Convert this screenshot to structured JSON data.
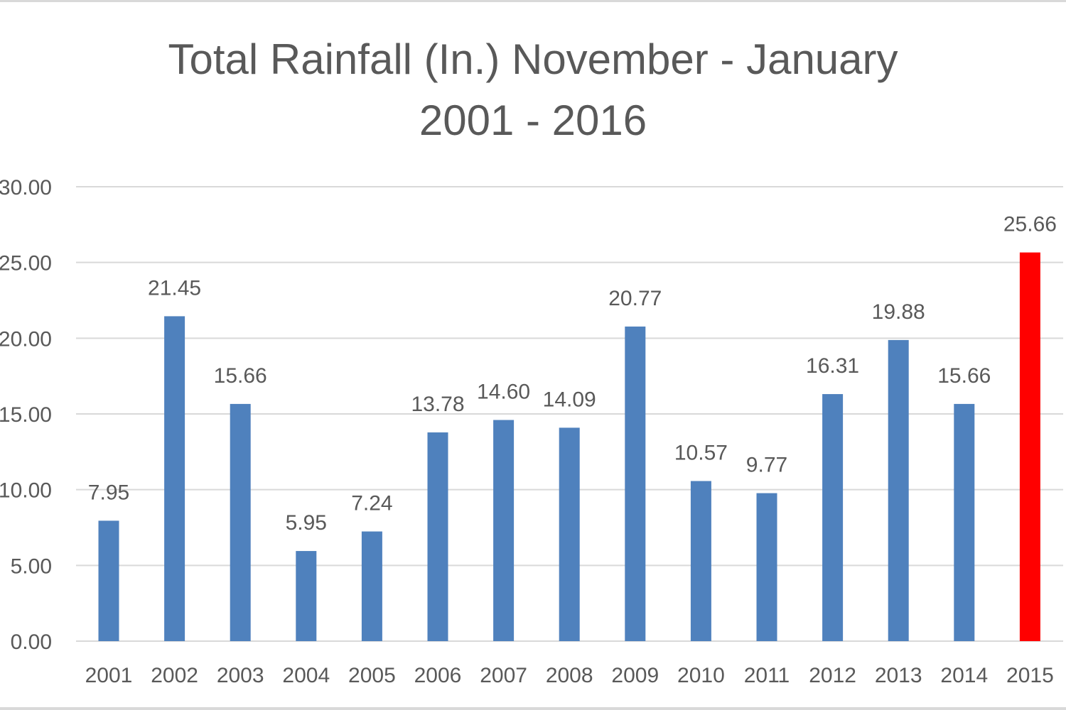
{
  "chart_data": {
    "type": "bar",
    "title_line1": "Total Rainfall (In.) November - January",
    "title_line2": "2001 - 2016",
    "categories": [
      "2001",
      "2002",
      "2003",
      "2004",
      "2005",
      "2006",
      "2007",
      "2008",
      "2009",
      "2010",
      "2011",
      "2012",
      "2013",
      "2014",
      "2015"
    ],
    "values": [
      7.95,
      21.45,
      15.66,
      5.95,
      7.24,
      13.78,
      14.6,
      14.09,
      20.77,
      10.57,
      9.77,
      16.31,
      19.88,
      15.66,
      25.66
    ],
    "value_labels": [
      "7.95",
      "21.45",
      "15.66",
      "5.95",
      "7.24",
      "13.78",
      "14.60",
      "14.09",
      "20.77",
      "10.57",
      "9.77",
      "16.31",
      "19.88",
      "15.66",
      "25.66"
    ],
    "y_ticks": [
      "0.00",
      "5.00",
      "10.00",
      "15.00",
      "20.00",
      "25.00",
      "30.00"
    ],
    "ylim": [
      0,
      30
    ],
    "xlabel": "",
    "ylabel": "",
    "grid": true,
    "colors": {
      "bar": "#4f81bd",
      "highlight_bar": "#ff0000",
      "gridline": "#d9d9d9",
      "text": "#595959"
    },
    "highlight_category": "2015"
  }
}
